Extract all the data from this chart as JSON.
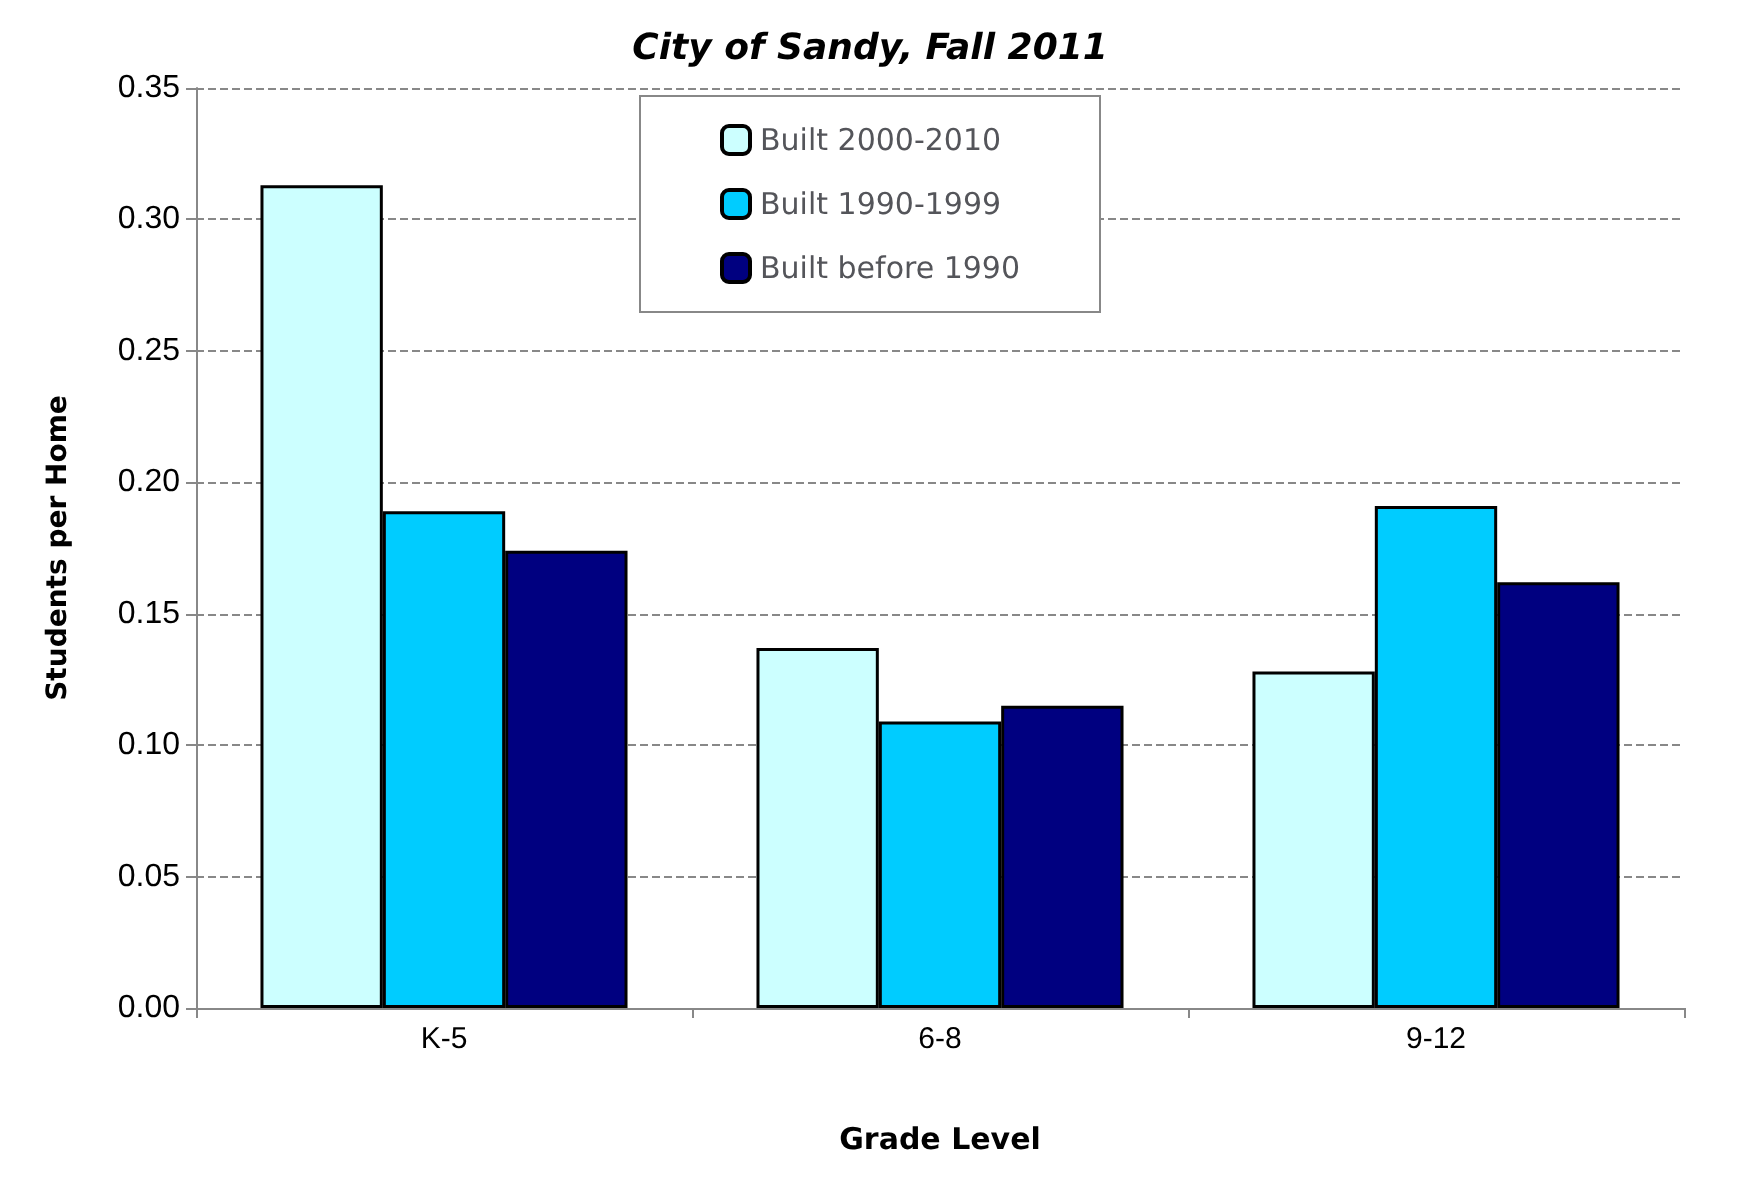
{
  "chart_data": {
    "type": "bar",
    "title": "City of Sandy, Fall 2011",
    "xlabel": "Grade Level",
    "ylabel": "Students per Home",
    "categories": [
      "K-5",
      "6-8",
      "9-12"
    ],
    "series": [
      {
        "name": "Built 2000-2010",
        "color": "#ccffff",
        "values": [
          0.313,
          0.137,
          0.128
        ]
      },
      {
        "name": "Built 1990-1999",
        "color": "#00ccff",
        "values": [
          0.189,
          0.109,
          0.191
        ]
      },
      {
        "name": "Built before 1990",
        "color": "#000080",
        "values": [
          0.174,
          0.115,
          0.162
        ]
      }
    ],
    "ylim": [
      0,
      0.35
    ],
    "yticks": [
      {
        "value": 0,
        "label": "0.00"
      },
      {
        "value": 0.05,
        "label": "0.05"
      },
      {
        "value": 0.1,
        "label": "0.10"
      },
      {
        "value": 0.15,
        "label": "0.15"
      },
      {
        "value": 0.2,
        "label": "0.20"
      },
      {
        "value": 0.25,
        "label": "0.25"
      },
      {
        "value": 0.3,
        "label": "0.30"
      },
      {
        "value": 0.35,
        "label": "0.35"
      }
    ],
    "grid": "y",
    "legend": "top"
  }
}
